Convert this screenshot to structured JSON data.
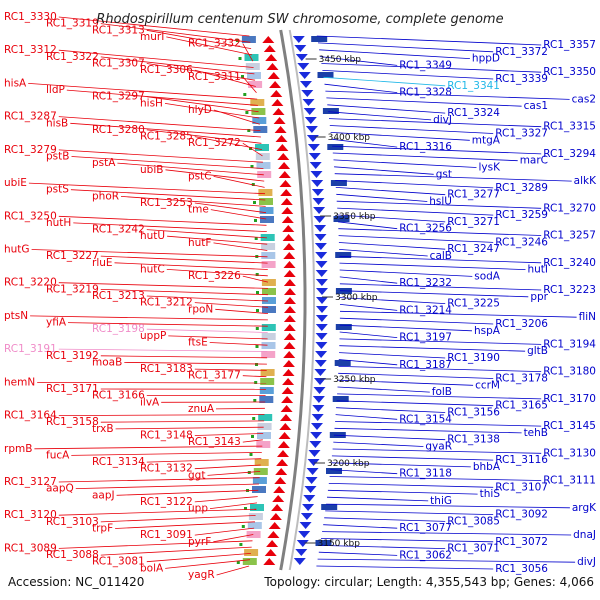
{
  "title": "Rhodospirillum centenum SW chromosome, complete genome",
  "accession": "Accession: NC_011420",
  "topology": "Topology: circular; Length: 4,355,543 bp; Genes: 4,066",
  "colors": {
    "left": "#e8000b",
    "right": "#0000cc",
    "pink": "#f08cc8",
    "cyan": "#22b8e8",
    "backbone": "#808080"
  },
  "kbp_markers": [
    "3450 kbp",
    "3400 kbp",
    "3350 kbp",
    "3300 kbp",
    "3250 kbp",
    "3200 kbp",
    "3150 kbp"
  ],
  "left_labels": [
    {
      "t": "RC1_3330",
      "c": "left"
    },
    {
      "t": "RC1_3319",
      "c": "left"
    },
    {
      "t": "RC1_3313",
      "c": "left"
    },
    {
      "t": "murI",
      "c": "left"
    },
    {
      "t": "RC1_3332",
      "c": "left"
    },
    {
      "t": "RC1_3312",
      "c": "left"
    },
    {
      "t": "RC1_3322",
      "c": "left"
    },
    {
      "t": "RC1_3307",
      "c": "left"
    },
    {
      "t": "RC1_3306",
      "c": "left"
    },
    {
      "t": "RC1_3311",
      "c": "left"
    },
    {
      "t": "hisA",
      "c": "left"
    },
    {
      "t": "lldP",
      "c": "left"
    },
    {
      "t": "RC1_3297",
      "c": "left"
    },
    {
      "t": "hisH",
      "c": "left"
    },
    {
      "t": "hlyD",
      "c": "left"
    },
    {
      "t": "RC1_3287",
      "c": "left"
    },
    {
      "t": "hisB",
      "c": "left"
    },
    {
      "t": "RC1_3280",
      "c": "left"
    },
    {
      "t": "RC1_3285",
      "c": "left"
    },
    {
      "t": "RC1_3272",
      "c": "left"
    },
    {
      "t": "RC1_3279",
      "c": "left"
    },
    {
      "t": "pstB",
      "c": "left"
    },
    {
      "t": "pstA",
      "c": "left"
    },
    {
      "t": "ubiB",
      "c": "left"
    },
    {
      "t": "pstC",
      "c": "left"
    },
    {
      "t": "ubiE",
      "c": "left"
    },
    {
      "t": "pstS",
      "c": "left"
    },
    {
      "t": "phoR",
      "c": "left"
    },
    {
      "t": "RC1_3253",
      "c": "left"
    },
    {
      "t": "tme",
      "c": "left"
    },
    {
      "t": "RC1_3250",
      "c": "left"
    },
    {
      "t": "hutH",
      "c": "left"
    },
    {
      "t": "RC1_3242",
      "c": "left"
    },
    {
      "t": "hutU",
      "c": "left"
    },
    {
      "t": "hutF",
      "c": "left"
    },
    {
      "t": "hutG",
      "c": "left"
    },
    {
      "t": "RC1_3227",
      "c": "left"
    },
    {
      "t": "rluE",
      "c": "left"
    },
    {
      "t": "hutC",
      "c": "left"
    },
    {
      "t": "RC1_3226",
      "c": "left"
    },
    {
      "t": "RC1_3220",
      "c": "left"
    },
    {
      "t": "RC1_3219",
      "c": "left"
    },
    {
      "t": "RC1_3213",
      "c": "left"
    },
    {
      "t": "RC1_3212",
      "c": "left"
    },
    {
      "t": "rpoN",
      "c": "left"
    },
    {
      "t": "ptsN",
      "c": "left"
    },
    {
      "t": "yfiA",
      "c": "left"
    },
    {
      "t": "RC1_3198",
      "c": "pink"
    },
    {
      "t": "uppP",
      "c": "left"
    },
    {
      "t": "ftsE",
      "c": "left"
    },
    {
      "t": "RC1_3191",
      "c": "pink"
    },
    {
      "t": "RC1_3192",
      "c": "left"
    },
    {
      "t": "moaB",
      "c": "left"
    },
    {
      "t": "RC1_3183",
      "c": "left"
    },
    {
      "t": "RC1_3177",
      "c": "left"
    },
    {
      "t": "hemN",
      "c": "left"
    },
    {
      "t": "RC1_3171",
      "c": "left"
    },
    {
      "t": "RC1_3166",
      "c": "left"
    },
    {
      "t": "ilvA",
      "c": "left"
    },
    {
      "t": "znuA",
      "c": "left"
    },
    {
      "t": "RC1_3164",
      "c": "left"
    },
    {
      "t": "RC1_3158",
      "c": "left"
    },
    {
      "t": "trxB",
      "c": "left"
    },
    {
      "t": "RC1_3148",
      "c": "left"
    },
    {
      "t": "RC1_3143",
      "c": "left"
    },
    {
      "t": "rpmB",
      "c": "left"
    },
    {
      "t": "fucA",
      "c": "left"
    },
    {
      "t": "RC1_3134",
      "c": "left"
    },
    {
      "t": "RC1_3132",
      "c": "left"
    },
    {
      "t": "ggt",
      "c": "left"
    },
    {
      "t": "RC1_3127",
      "c": "left"
    },
    {
      "t": "aapQ",
      "c": "left"
    },
    {
      "t": "aapJ",
      "c": "left"
    },
    {
      "t": "RC1_3122",
      "c": "left"
    },
    {
      "t": "upp",
      "c": "left"
    },
    {
      "t": "RC1_3120",
      "c": "left"
    },
    {
      "t": "RC1_3103",
      "c": "left"
    },
    {
      "t": "trpF",
      "c": "left"
    },
    {
      "t": "RC1_3091",
      "c": "left"
    },
    {
      "t": "pyrF",
      "c": "left"
    },
    {
      "t": "RC1_3089",
      "c": "left"
    },
    {
      "t": "RC1_3088",
      "c": "left"
    },
    {
      "t": "RC1_3081",
      "c": "left"
    },
    {
      "t": "bolA",
      "c": "left"
    },
    {
      "t": "yagR",
      "c": "left"
    }
  ],
  "right_labels": [
    {
      "t": "RC1_3357",
      "c": "right"
    },
    {
      "t": "RC1_3372",
      "c": "right"
    },
    {
      "t": "hppD",
      "c": "right"
    },
    {
      "t": "RC1_3349",
      "c": "right"
    },
    {
      "t": "RC1_3350",
      "c": "right"
    },
    {
      "t": "RC1_3339",
      "c": "right"
    },
    {
      "t": "RC1_3341",
      "c": "cyan"
    },
    {
      "t": "RC1_3328",
      "c": "right"
    },
    {
      "t": "cas2",
      "c": "right"
    },
    {
      "t": "cas1",
      "c": "right"
    },
    {
      "t": "RC1_3324",
      "c": "right"
    },
    {
      "t": "divJ",
      "c": "right"
    },
    {
      "t": "RC1_3315",
      "c": "right"
    },
    {
      "t": "RC1_3327",
      "c": "right"
    },
    {
      "t": "mtgA",
      "c": "right"
    },
    {
      "t": "RC1_3316",
      "c": "right"
    },
    {
      "t": "RC1_3294",
      "c": "right"
    },
    {
      "t": "marC",
      "c": "right"
    },
    {
      "t": "lysK",
      "c": "right"
    },
    {
      "t": "gst",
      "c": "right"
    },
    {
      "t": "alkK",
      "c": "right"
    },
    {
      "t": "RC1_3289",
      "c": "right"
    },
    {
      "t": "RC1_3277",
      "c": "right"
    },
    {
      "t": "hslU",
      "c": "right"
    },
    {
      "t": "RC1_3270",
      "c": "right"
    },
    {
      "t": "RC1_3259",
      "c": "right"
    },
    {
      "t": "RC1_3271",
      "c": "right"
    },
    {
      "t": "RC1_3256",
      "c": "right"
    },
    {
      "t": "RC1_3257",
      "c": "right"
    },
    {
      "t": "RC1_3246",
      "c": "right"
    },
    {
      "t": "RC1_3247",
      "c": "right"
    },
    {
      "t": "calB",
      "c": "right"
    },
    {
      "t": "RC1_3240",
      "c": "right"
    },
    {
      "t": "hutI",
      "c": "right"
    },
    {
      "t": "sodA",
      "c": "right"
    },
    {
      "t": "RC1_3232",
      "c": "right"
    },
    {
      "t": "RC1_3223",
      "c": "right"
    },
    {
      "t": "ppr",
      "c": "right"
    },
    {
      "t": "RC1_3225",
      "c": "right"
    },
    {
      "t": "RC1_3214",
      "c": "right"
    },
    {
      "t": "fliN",
      "c": "right"
    },
    {
      "t": "RC1_3206",
      "c": "right"
    },
    {
      "t": "hspA",
      "c": "right"
    },
    {
      "t": "RC1_3197",
      "c": "right"
    },
    {
      "t": "RC1_3194",
      "c": "right"
    },
    {
      "t": "gltB",
      "c": "right"
    },
    {
      "t": "RC1_3190",
      "c": "right"
    },
    {
      "t": "RC1_3187",
      "c": "right"
    },
    {
      "t": "RC1_3180",
      "c": "right"
    },
    {
      "t": "RC1_3178",
      "c": "right"
    },
    {
      "t": "ccrM",
      "c": "right"
    },
    {
      "t": "folB",
      "c": "right"
    },
    {
      "t": "RC1_3170",
      "c": "right"
    },
    {
      "t": "RC1_3165",
      "c": "right"
    },
    {
      "t": "RC1_3156",
      "c": "right"
    },
    {
      "t": "RC1_3154",
      "c": "right"
    },
    {
      "t": "RC1_3145",
      "c": "right"
    },
    {
      "t": "tehB",
      "c": "right"
    },
    {
      "t": "RC1_3138",
      "c": "right"
    },
    {
      "t": "gyaR",
      "c": "right"
    },
    {
      "t": "RC1_3130",
      "c": "right"
    },
    {
      "t": "RC1_3116",
      "c": "right"
    },
    {
      "t": "bhbA",
      "c": "right"
    },
    {
      "t": "RC1_3118",
      "c": "right"
    },
    {
      "t": "RC1_3111",
      "c": "right"
    },
    {
      "t": "RC1_3107",
      "c": "right"
    },
    {
      "t": "thiS",
      "c": "right"
    },
    {
      "t": "thiG",
      "c": "right"
    },
    {
      "t": "argK",
      "c": "right"
    },
    {
      "t": "RC1_3092",
      "c": "right"
    },
    {
      "t": "RC1_3085",
      "c": "right"
    },
    {
      "t": "RC1_3077",
      "c": "right"
    },
    {
      "t": "dnaJ",
      "c": "right"
    },
    {
      "t": "RC1_3072",
      "c": "right"
    },
    {
      "t": "RC1_3071",
      "c": "right"
    },
    {
      "t": "RC1_3062",
      "c": "right"
    },
    {
      "t": "divJ",
      "c": "right"
    },
    {
      "t": "RC1_3056",
      "c": "right"
    }
  ]
}
